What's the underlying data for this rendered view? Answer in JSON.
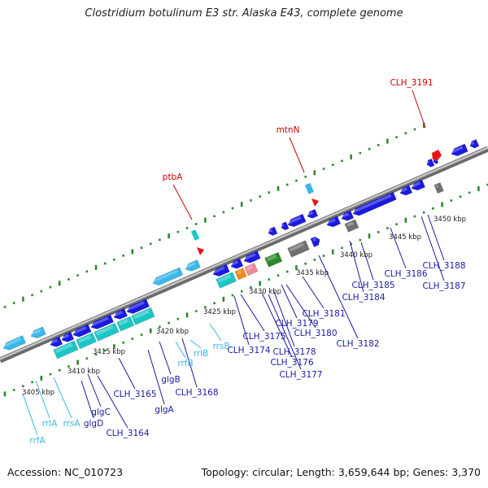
{
  "title": "Clostridium botulinum E3 str. Alaska E43, complete genome",
  "footer": {
    "accession": "Accession: NC_010723",
    "topology": "Topology: circular; Length: 3,659,644 bp; Genes: 3,370"
  },
  "colors": {
    "cds": "#1a1ae0",
    "rrna": "#38b8e8",
    "trna": "#1cc6c6",
    "gray_feature": "#707070",
    "green_feature": "#2b8a2b",
    "orange_feature": "#f08a1a",
    "pink_feature": "#f08a9a",
    "red_feature": "#ee1111",
    "dot_track": "#2a8a2a",
    "backbone": "#a0a0a0",
    "cds_label": "#1a1aa0",
    "rna_label": "#38b8e8",
    "red_label": "#cc0000"
  },
  "scale_ticks": [
    "3405 kbp",
    "3410 kbp",
    "3415 kbp",
    "3420 kbp",
    "3425 kbp",
    "3430 kbp",
    "3435 kbp",
    "3440 kbp",
    "3445 kbp",
    "3450 kbp"
  ],
  "red_labels": [
    "ptbA",
    "mtnN",
    "CLH_3191"
  ],
  "gene_labels": [
    {
      "text": "rrfA",
      "kind": "rna"
    },
    {
      "text": "rrlA",
      "kind": "rna"
    },
    {
      "text": "rrsA",
      "kind": "rna"
    },
    {
      "text": "glgD",
      "kind": "cds"
    },
    {
      "text": "glgC",
      "kind": "cds"
    },
    {
      "text": "CLH_3164",
      "kind": "cds"
    },
    {
      "text": "CLH_3165",
      "kind": "cds"
    },
    {
      "text": "glgA",
      "kind": "cds"
    },
    {
      "text": "glgB",
      "kind": "cds"
    },
    {
      "text": "rrfB",
      "kind": "rna"
    },
    {
      "text": "CLH_3168",
      "kind": "cds"
    },
    {
      "text": "rrlB",
      "kind": "rna"
    },
    {
      "text": "rrsB",
      "kind": "rna"
    },
    {
      "text": "CLH_3174",
      "kind": "cds"
    },
    {
      "text": "CLH_3175",
      "kind": "cds"
    },
    {
      "text": "CLH_3176",
      "kind": "cds"
    },
    {
      "text": "CLH_3177",
      "kind": "cds"
    },
    {
      "text": "CLH_3178",
      "kind": "cds"
    },
    {
      "text": "CLH_3179",
      "kind": "cds"
    },
    {
      "text": "CLH_3180",
      "kind": "cds"
    },
    {
      "text": "CLH_3181",
      "kind": "cds"
    },
    {
      "text": "CLH_3182",
      "kind": "cds"
    },
    {
      "text": "CLH_3184",
      "kind": "cds"
    },
    {
      "text": "CLH_3185",
      "kind": "cds"
    },
    {
      "text": "CLH_3186",
      "kind": "cds"
    },
    {
      "text": "CLH_3187",
      "kind": "cds"
    },
    {
      "text": "CLH_3188",
      "kind": "cds"
    }
  ]
}
